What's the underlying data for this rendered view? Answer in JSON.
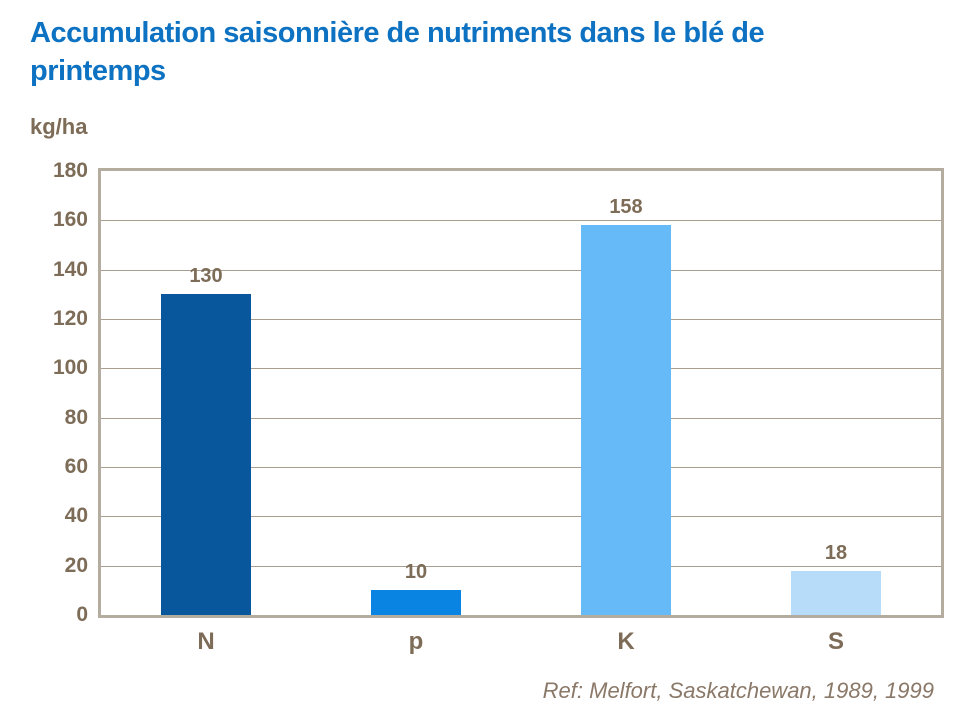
{
  "title": "Accumulation saisonnière de nutriments dans le blé de printemps",
  "reference": "Ref: Melfort, Saskatchewan, 1989, 1999",
  "chart_data": {
    "type": "bar",
    "title": "Accumulation saisonnière de nutriments dans le blé de printemps",
    "xlabel": "",
    "ylabel": "kg/ha",
    "categories": [
      "N",
      "p",
      "K",
      "S"
    ],
    "values": [
      130,
      10,
      158,
      18
    ],
    "bar_colors": [
      "#08569B",
      "#0A84E2",
      "#66BAF8",
      "#B7DCFA"
    ],
    "ylim": [
      0,
      180
    ],
    "ytick_step": 20,
    "yticks": [
      0,
      20,
      40,
      60,
      80,
      100,
      120,
      140,
      160,
      180
    ],
    "grid": true,
    "legend": false
  },
  "colors": {
    "title_text": "#0E72C2",
    "axis_text": "#7D6C57",
    "reference_text": "#8A7868",
    "grid_line": "#A89E90",
    "plot_border": "#B5ACA0",
    "background": "#FFFFFF"
  }
}
